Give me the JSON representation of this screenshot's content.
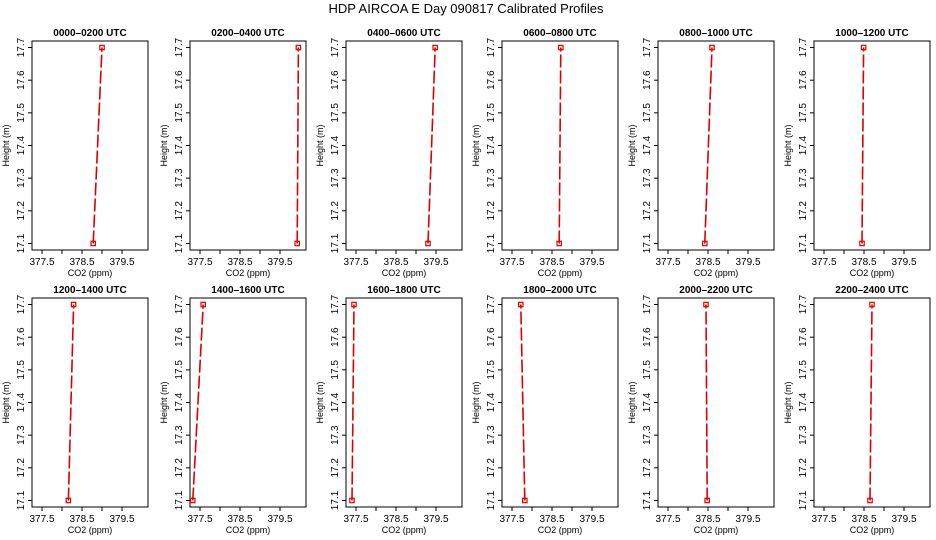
{
  "title": "HDP AIRCOA E  Day 090817  Calibrated Profiles",
  "chart_data": {
    "type": "line",
    "layout": "2x6 grid of panels",
    "xlabel": "CO2 (ppm)",
    "ylabel": "Height (m)",
    "xlim": [
      377.25,
      380.15
    ],
    "ylim": [
      17.08,
      17.72
    ],
    "xticks": [
      377.5,
      378.0,
      378.5,
      379.0,
      379.5
    ],
    "xtick_labels": [
      "377.5",
      "",
      "378.5",
      "",
      "379.5"
    ],
    "yticks": [
      17.1,
      17.2,
      17.3,
      17.4,
      17.5,
      17.6,
      17.7
    ],
    "ytick_labels": [
      "17.1",
      "17.2",
      "17.3",
      "17.4",
      "17.5",
      "17.6",
      "17.7"
    ],
    "line_color": "#dd0000",
    "line_style": "dashed",
    "marker": "open-square",
    "panels": [
      {
        "title": "0000–0200 UTC",
        "points": [
          {
            "x": 378.78,
            "y": 17.1
          },
          {
            "x": 379.0,
            "y": 17.7
          }
        ]
      },
      {
        "title": "0200–0400 UTC",
        "points": [
          {
            "x": 379.93,
            "y": 17.1
          },
          {
            "x": 379.96,
            "y": 17.7
          }
        ]
      },
      {
        "title": "0400–0600 UTC",
        "points": [
          {
            "x": 379.3,
            "y": 17.1
          },
          {
            "x": 379.48,
            "y": 17.7
          }
        ]
      },
      {
        "title": "0600–0800 UTC",
        "points": [
          {
            "x": 378.68,
            "y": 17.1
          },
          {
            "x": 378.72,
            "y": 17.7
          }
        ]
      },
      {
        "title": "0800–1000 UTC",
        "points": [
          {
            "x": 378.42,
            "y": 17.1
          },
          {
            "x": 378.6,
            "y": 17.7
          }
        ]
      },
      {
        "title": "1000–1200 UTC",
        "points": [
          {
            "x": 378.45,
            "y": 17.1
          },
          {
            "x": 378.49,
            "y": 17.7
          }
        ]
      },
      {
        "title": "1200–1400 UTC",
        "points": [
          {
            "x": 378.16,
            "y": 17.1
          },
          {
            "x": 378.29,
            "y": 17.7
          }
        ]
      },
      {
        "title": "1400–1600 UTC",
        "points": [
          {
            "x": 377.32,
            "y": 17.1
          },
          {
            "x": 377.58,
            "y": 17.7
          }
        ]
      },
      {
        "title": "1600–1800 UTC",
        "points": [
          {
            "x": 377.4,
            "y": 17.1
          },
          {
            "x": 377.45,
            "y": 17.7
          }
        ]
      },
      {
        "title": "1800–2000 UTC",
        "points": [
          {
            "x": 377.82,
            "y": 17.1
          },
          {
            "x": 377.72,
            "y": 17.7
          }
        ]
      },
      {
        "title": "2000–2200 UTC",
        "points": [
          {
            "x": 378.48,
            "y": 17.1
          },
          {
            "x": 378.45,
            "y": 17.7
          }
        ]
      },
      {
        "title": "2200–2400 UTC",
        "points": [
          {
            "x": 378.65,
            "y": 17.1
          },
          {
            "x": 378.7,
            "y": 17.7
          }
        ]
      }
    ]
  }
}
